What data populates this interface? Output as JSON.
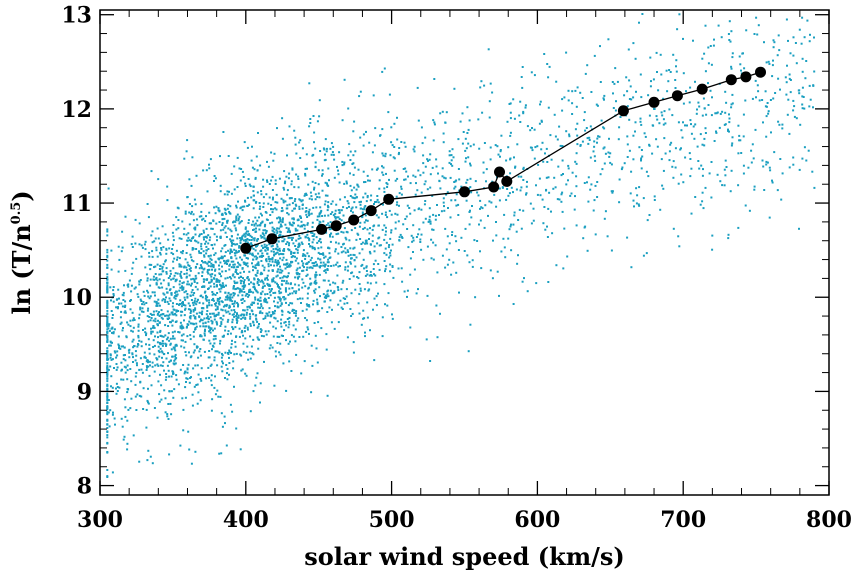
{
  "chart_data": {
    "type": "scatter",
    "xlabel": "solar wind speed (km/s)",
    "ylabel_main": "ln (T/n",
    "ylabel_sup": "0.5",
    "ylabel_close": ")",
    "xlim": [
      300,
      800
    ],
    "ylim": [
      7.9,
      13.05
    ],
    "x_ticks": [
      300,
      400,
      500,
      600,
      700,
      800
    ],
    "y_ticks": [
      8,
      9,
      10,
      11,
      12,
      13
    ],
    "x_minor_step": 20,
    "y_minor_step": 0.2,
    "grid": false,
    "scatter_color": "#1a9fc0",
    "line_color": "#000000",
    "scatter_cloud": {
      "n_points": 4300,
      "trend": [
        [
          310,
          9.55
        ],
        [
          400,
          10.3
        ],
        [
          500,
          10.9
        ],
        [
          600,
          11.35
        ],
        [
          700,
          11.85
        ],
        [
          800,
          12.2
        ]
      ],
      "x_range": [
        305,
        790
      ],
      "spread": 0.55
    },
    "binned_means": {
      "x": [
        400,
        418,
        452,
        462,
        474,
        486,
        498,
        550,
        570,
        574,
        579,
        659,
        680,
        696,
        713,
        733,
        743,
        753
      ],
      "y": [
        10.52,
        10.62,
        10.72,
        10.76,
        10.82,
        10.92,
        11.04,
        11.12,
        11.17,
        11.33,
        11.23,
        11.98,
        12.07,
        12.14,
        12.21,
        12.31,
        12.34,
        12.39
      ]
    }
  }
}
